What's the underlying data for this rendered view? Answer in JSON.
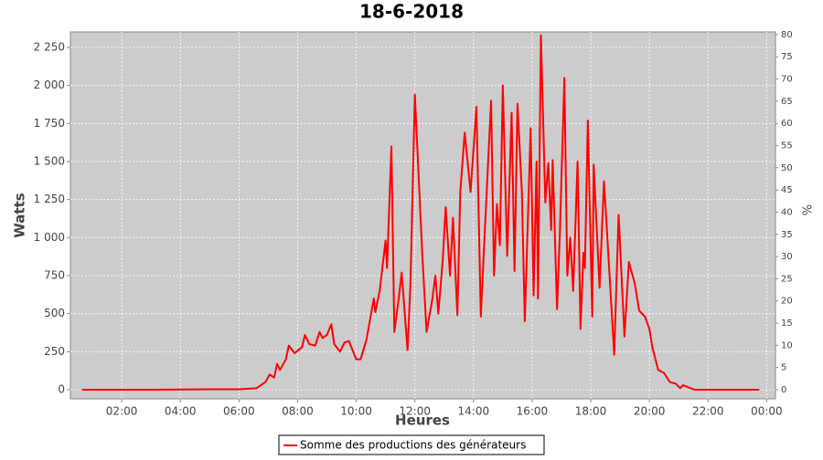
{
  "chart_data": {
    "type": "line",
    "title": "18-6-2018",
    "x_label": "Heures",
    "y_label": "Watts",
    "y2_label": "%",
    "x": [
      0.65,
      3.0,
      5.0,
      6.0,
      6.6,
      6.9,
      7.05,
      7.2,
      7.3,
      7.4,
      7.6,
      7.7,
      7.9,
      8.15,
      8.25,
      8.4,
      8.6,
      8.75,
      8.85,
      9.0,
      9.15,
      9.25,
      9.45,
      9.6,
      9.75,
      10.0,
      10.15,
      10.35,
      10.6,
      10.65,
      10.8,
      11.0,
      11.05,
      11.2,
      11.3,
      11.45,
      11.55,
      11.75,
      11.85,
      12.0,
      12.25,
      12.4,
      12.6,
      12.7,
      12.8,
      12.95,
      13.05,
      13.2,
      13.3,
      13.45,
      13.55,
      13.7,
      13.9,
      14.1,
      14.25,
      14.4,
      14.6,
      14.7,
      14.8,
      14.9,
      15.0,
      15.15,
      15.3,
      15.4,
      15.5,
      15.65,
      15.75,
      15.95,
      16.05,
      16.15,
      16.2,
      16.3,
      16.45,
      16.55,
      16.65,
      16.7,
      16.85,
      16.95,
      17.1,
      17.2,
      17.3,
      17.4,
      17.55,
      17.65,
      17.75,
      17.8,
      17.9,
      18.05,
      18.1,
      18.3,
      18.45,
      18.55,
      18.8,
      18.95,
      19.15,
      19.3,
      19.5,
      19.65,
      19.85,
      20.0,
      20.1,
      20.3,
      20.5,
      20.7,
      20.9,
      21.05,
      21.15,
      21.4,
      21.55,
      23.75
    ],
    "series": [
      {
        "name": "Somme des productions des  générateurs",
        "color": "#ff0000",
        "values": [
          0,
          0,
          3,
          3,
          10,
          50,
          100,
          80,
          170,
          130,
          200,
          290,
          240,
          280,
          360,
          300,
          290,
          380,
          340,
          360,
          430,
          300,
          250,
          310,
          320,
          200,
          200,
          330,
          600,
          510,
          650,
          980,
          800,
          1600,
          380,
          600,
          770,
          260,
          700,
          1940,
          900,
          380,
          600,
          750,
          500,
          850,
          1200,
          750,
          1130,
          490,
          1300,
          1690,
          1300,
          1860,
          480,
          1100,
          1900,
          750,
          1220,
          950,
          2000,
          880,
          1820,
          780,
          1880,
          1300,
          450,
          1720,
          620,
          1500,
          600,
          2330,
          1230,
          1490,
          1050,
          1510,
          530,
          1050,
          2050,
          750,
          1000,
          650,
          1500,
          400,
          900,
          800,
          1770,
          480,
          1480,
          670,
          1370,
          1050,
          230,
          1150,
          350,
          840,
          700,
          520,
          480,
          400,
          280,
          130,
          110,
          50,
          40,
          10,
          30,
          10,
          0,
          0
        ]
      }
    ],
    "xlim": [
      0.25,
      24.3
    ],
    "xticks": [
      {
        "value": 2,
        "label": "02:00"
      },
      {
        "value": 4,
        "label": "04:00"
      },
      {
        "value": 6,
        "label": "06:00"
      },
      {
        "value": 8,
        "label": "08:00"
      },
      {
        "value": 10,
        "label": "10:00"
      },
      {
        "value": 12,
        "label": "12:00"
      },
      {
        "value": 14,
        "label": "14:00"
      },
      {
        "value": 16,
        "label": "16:00"
      },
      {
        "value": 18,
        "label": "18:00"
      },
      {
        "value": 20,
        "label": "20:00"
      },
      {
        "value": 22,
        "label": "22:00"
      },
      {
        "value": 24,
        "label": "00:00"
      }
    ],
    "ylim": [
      -60,
      2352
    ],
    "yticks": [
      0,
      250,
      500,
      750,
      {
        "value": 1000,
        "label": "1 000"
      },
      {
        "value": 1250,
        "label": "1 250"
      },
      {
        "value": 1500,
        "label": "1 500"
      },
      {
        "value": 1750,
        "label": "1 750"
      },
      {
        "value": 2000,
        "label": "2 000"
      },
      {
        "value": 2250,
        "label": "2 250"
      }
    ],
    "y2lim": [
      -2.06,
      80.6
    ],
    "y2ticks": [
      0,
      5,
      10,
      15,
      20,
      25,
      30,
      35,
      40,
      45,
      50,
      55,
      60,
      65,
      70,
      75,
      80
    ],
    "grid": true,
    "legend": "bottom"
  }
}
